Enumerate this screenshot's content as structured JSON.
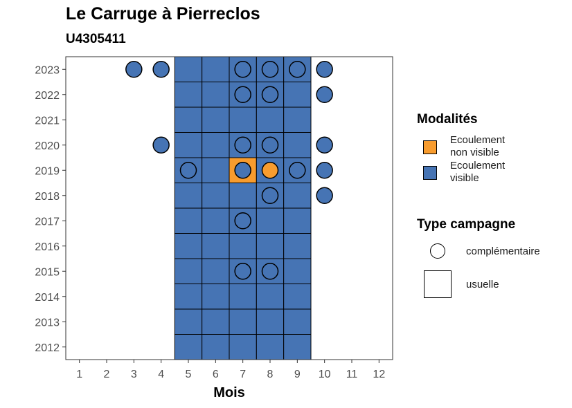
{
  "chart_data": {
    "type": "heatmap",
    "title": "Le Carruge à Pierreclos",
    "subtitle": "U4305411",
    "xlabel": "Mois",
    "ylabel": "",
    "x_ticks": [
      1,
      2,
      3,
      4,
      5,
      6,
      7,
      8,
      9,
      10,
      11,
      12
    ],
    "y_ticks": [
      2012,
      2013,
      2014,
      2015,
      2016,
      2017,
      2018,
      2019,
      2020,
      2021,
      2022,
      2023
    ],
    "xlim": [
      0.5,
      12.5
    ],
    "ylim": [
      2011.5,
      2023.5
    ],
    "colors": {
      "Ecoulement non visible": "#F89C2E",
      "Ecoulement visible": "#4674B4"
    },
    "grid": false,
    "legend_position": "right",
    "usuelle_months": [
      5,
      6,
      7,
      8,
      9
    ],
    "usuelle_years": [
      2012,
      2013,
      2014,
      2015,
      2016,
      2017,
      2018,
      2019,
      2020,
      2021,
      2022,
      2023
    ],
    "usuelle_exceptions": [
      {
        "year": 2019,
        "month": 7,
        "modalite": "Ecoulement non visible"
      }
    ],
    "complementaire": [
      {
        "year": 2023,
        "month": 3,
        "modalite": "Ecoulement visible"
      },
      {
        "year": 2023,
        "month": 4,
        "modalite": "Ecoulement visible"
      },
      {
        "year": 2023,
        "month": 7,
        "modalite": "Ecoulement visible"
      },
      {
        "year": 2023,
        "month": 8,
        "modalite": "Ecoulement visible"
      },
      {
        "year": 2023,
        "month": 9,
        "modalite": "Ecoulement visible"
      },
      {
        "year": 2023,
        "month": 10,
        "modalite": "Ecoulement visible"
      },
      {
        "year": 2022,
        "month": 7,
        "modalite": "Ecoulement visible"
      },
      {
        "year": 2022,
        "month": 8,
        "modalite": "Ecoulement visible"
      },
      {
        "year": 2022,
        "month": 10,
        "modalite": "Ecoulement visible"
      },
      {
        "year": 2020,
        "month": 4,
        "modalite": "Ecoulement visible"
      },
      {
        "year": 2020,
        "month": 7,
        "modalite": "Ecoulement visible"
      },
      {
        "year": 2020,
        "month": 8,
        "modalite": "Ecoulement visible"
      },
      {
        "year": 2020,
        "month": 10,
        "modalite": "Ecoulement visible"
      },
      {
        "year": 2019,
        "month": 5,
        "modalite": "Ecoulement visible"
      },
      {
        "year": 2019,
        "month": 7,
        "modalite": "Ecoulement visible"
      },
      {
        "year": 2019,
        "month": 8,
        "modalite": "Ecoulement non visible"
      },
      {
        "year": 2019,
        "month": 9,
        "modalite": "Ecoulement visible"
      },
      {
        "year": 2019,
        "month": 10,
        "modalite": "Ecoulement visible"
      },
      {
        "year": 2018,
        "month": 8,
        "modalite": "Ecoulement visible"
      },
      {
        "year": 2018,
        "month": 10,
        "modalite": "Ecoulement visible"
      },
      {
        "year": 2017,
        "month": 7,
        "modalite": "Ecoulement visible"
      },
      {
        "year": 2015,
        "month": 7,
        "modalite": "Ecoulement visible"
      },
      {
        "year": 2015,
        "month": 8,
        "modalite": "Ecoulement visible"
      }
    ]
  },
  "legend": {
    "modalites_title": "Modalités",
    "modalites": [
      {
        "line1": "Ecoulement",
        "line2": "non visible",
        "color": "#F89C2E"
      },
      {
        "line1": "Ecoulement",
        "line2": "visible",
        "color": "#4674B4"
      }
    ],
    "type_title": "Type campagne",
    "types": [
      {
        "label": "complémentaire",
        "shape": "circle"
      },
      {
        "label": "usuelle",
        "shape": "square"
      }
    ]
  }
}
